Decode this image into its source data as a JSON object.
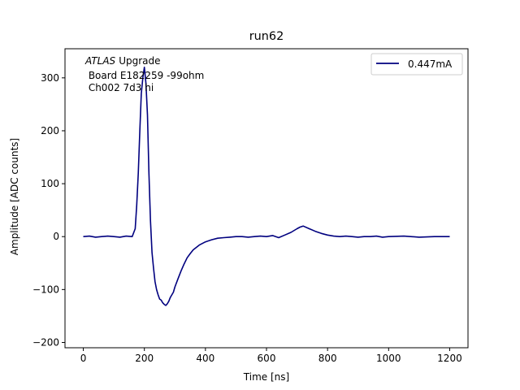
{
  "chart_data": {
    "type": "line",
    "title": "run62",
    "xlabel": "Time [ns]",
    "ylabel": "Amplitude [ADC counts]",
    "xlim": [
      -60,
      1260
    ],
    "ylim": [
      -210,
      355
    ],
    "xticks": [
      0,
      200,
      400,
      600,
      800,
      1000,
      1200
    ],
    "yticks": [
      -200,
      -100,
      0,
      100,
      200,
      300
    ],
    "grid": false,
    "legend_position": "top-right",
    "annotation": {
      "lines": [
        "Upgrade",
        " Board E182259 -99ohm",
        " Ch002 7d3 hi"
      ],
      "italic_prefix": "ATLAS"
    },
    "series": [
      {
        "name": "0.447mA",
        "color": "#00007f",
        "x": [
          0,
          20,
          40,
          60,
          80,
          100,
          120,
          140,
          160,
          170,
          175,
          180,
          185,
          190,
          195,
          200,
          205,
          210,
          215,
          220,
          225,
          230,
          235,
          240,
          245,
          250,
          255,
          260,
          265,
          270,
          275,
          280,
          285,
          290,
          295,
          300,
          310,
          320,
          330,
          340,
          350,
          360,
          380,
          400,
          420,
          440,
          460,
          480,
          500,
          520,
          540,
          560,
          580,
          600,
          620,
          640,
          660,
          680,
          700,
          710,
          720,
          740,
          760,
          780,
          800,
          820,
          840,
          860,
          880,
          900,
          920,
          940,
          960,
          980,
          1000,
          1050,
          1100,
          1150,
          1200
        ],
        "y": [
          0,
          1,
          -1,
          0,
          1,
          0,
          -1,
          1,
          0,
          15,
          60,
          120,
          200,
          270,
          300,
          320,
          290,
          230,
          120,
          30,
          -30,
          -60,
          -85,
          -100,
          -110,
          -118,
          -120,
          -125,
          -128,
          -130,
          -127,
          -122,
          -115,
          -110,
          -105,
          -95,
          -80,
          -65,
          -52,
          -40,
          -32,
          -25,
          -16,
          -10,
          -6,
          -3,
          -2,
          -1,
          0,
          0,
          -1,
          0,
          1,
          0,
          2,
          -2,
          3,
          8,
          15,
          18,
          20,
          15,
          10,
          6,
          3,
          1,
          0,
          1,
          0,
          -1,
          0,
          0,
          1,
          -1,
          0,
          1,
          -1,
          0,
          0
        ]
      }
    ]
  }
}
